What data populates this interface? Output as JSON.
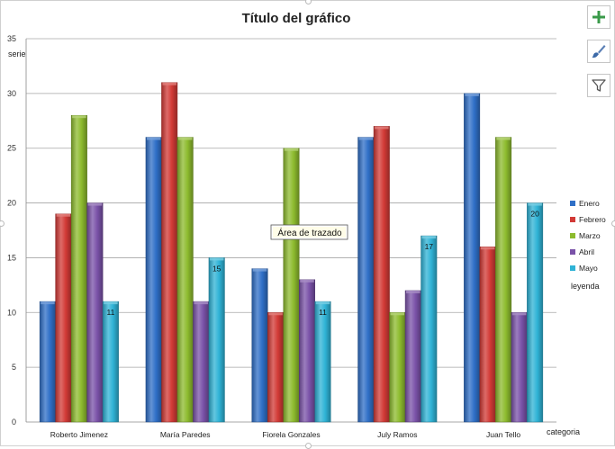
{
  "chart_data": {
    "type": "bar",
    "title": "Título del gráfico",
    "categories": [
      "Roberto Jimenez",
      "María Paredes",
      "Fiorela Gonzales",
      "July Ramos",
      "Juan Tello"
    ],
    "series": [
      {
        "name": "Enero",
        "color": "#2f6fc7",
        "values": [
          11,
          26,
          14,
          26,
          30
        ]
      },
      {
        "name": "Febrero",
        "color": "#d23a36",
        "values": [
          19,
          31,
          10,
          27,
          16
        ]
      },
      {
        "name": "Marzo",
        "color": "#8dbb2e",
        "values": [
          28,
          26,
          25,
          10,
          26
        ]
      },
      {
        "name": "Abril",
        "color": "#7a52a8",
        "values": [
          20,
          11,
          13,
          12,
          10
        ]
      },
      {
        "name": "Mayo",
        "color": "#2fb3d6",
        "values": [
          11,
          15,
          11,
          17,
          20
        ]
      }
    ],
    "data_labels": [
      {
        "series": 4,
        "category": 0,
        "text": "11"
      },
      {
        "series": 4,
        "category": 1,
        "text": "15"
      },
      {
        "series": 4,
        "category": 2,
        "text": "11"
      },
      {
        "series": 4,
        "category": 3,
        "text": "17"
      },
      {
        "series": 4,
        "category": 4,
        "text": "20"
      }
    ],
    "ylim": [
      0,
      35
    ],
    "yticks": [
      0,
      5,
      10,
      15,
      20,
      25,
      30,
      35
    ],
    "ylabel": "serie",
    "xlabel": "categoria",
    "legend_title": "leyenda",
    "legend_position": "right",
    "plot_area_label": "Área de trazado",
    "grid": true
  },
  "toolbar": {
    "add_icon": "plus-icon",
    "style_icon": "brush-icon",
    "filter_icon": "funnel-icon",
    "plus_color": "#3a9a4a"
  }
}
